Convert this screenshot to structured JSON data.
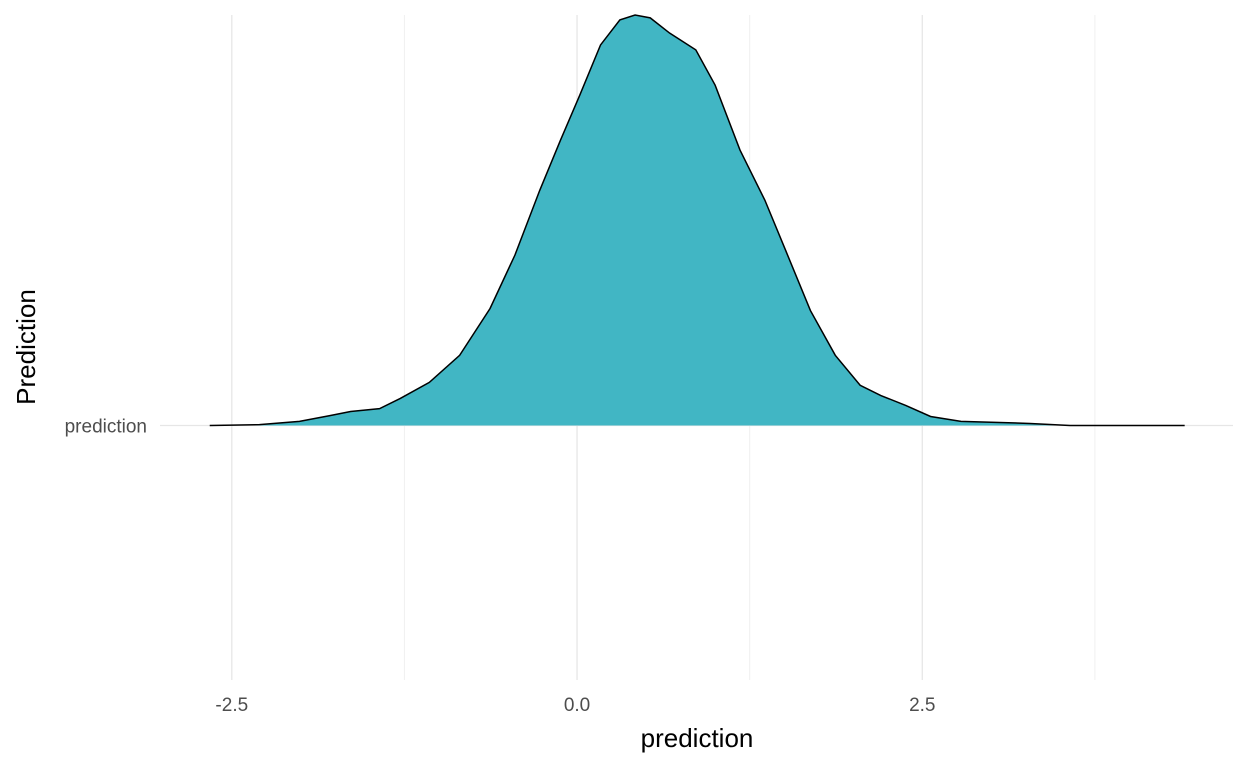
{
  "chart_data": {
    "type": "ridgeline",
    "x_label": "prediction",
    "y_label": "Prediction",
    "categories": [
      "prediction"
    ],
    "series": [
      {
        "name": "prediction",
        "color": "#41b6c4",
        "x": [
          -2.66,
          -2.3,
          -2.01,
          -1.79,
          -1.64,
          -1.43,
          -1.28,
          -1.07,
          -0.85,
          -0.63,
          -0.45,
          -0.27,
          -0.12,
          0.02,
          0.17,
          0.31,
          0.42,
          0.53,
          0.67,
          0.86,
          1.0,
          1.18,
          1.36,
          1.51,
          1.69,
          1.87,
          2.05,
          2.2,
          2.38,
          2.56,
          2.78,
          3.28,
          3.57,
          4.4
        ],
        "values": [
          0,
          0.002,
          0.01,
          0.024,
          0.034,
          0.041,
          0.066,
          0.105,
          0.171,
          0.285,
          0.415,
          0.573,
          0.695,
          0.805,
          0.927,
          0.988,
          1.0,
          0.993,
          0.956,
          0.915,
          0.829,
          0.671,
          0.549,
          0.427,
          0.28,
          0.171,
          0.098,
          0.073,
          0.049,
          0.022,
          0.01,
          0.005,
          0,
          0
        ]
      }
    ],
    "xlim": [
      -3.02,
      4.75
    ],
    "xticks": [
      -2.5,
      {
        "value": 0,
        "label": "0.0"
      },
      2.5
    ],
    "x_minor_ticks": [
      -1.25,
      1.25,
      3.75
    ],
    "ylim": [
      -0.62,
      1.0
    ],
    "grid": true
  }
}
